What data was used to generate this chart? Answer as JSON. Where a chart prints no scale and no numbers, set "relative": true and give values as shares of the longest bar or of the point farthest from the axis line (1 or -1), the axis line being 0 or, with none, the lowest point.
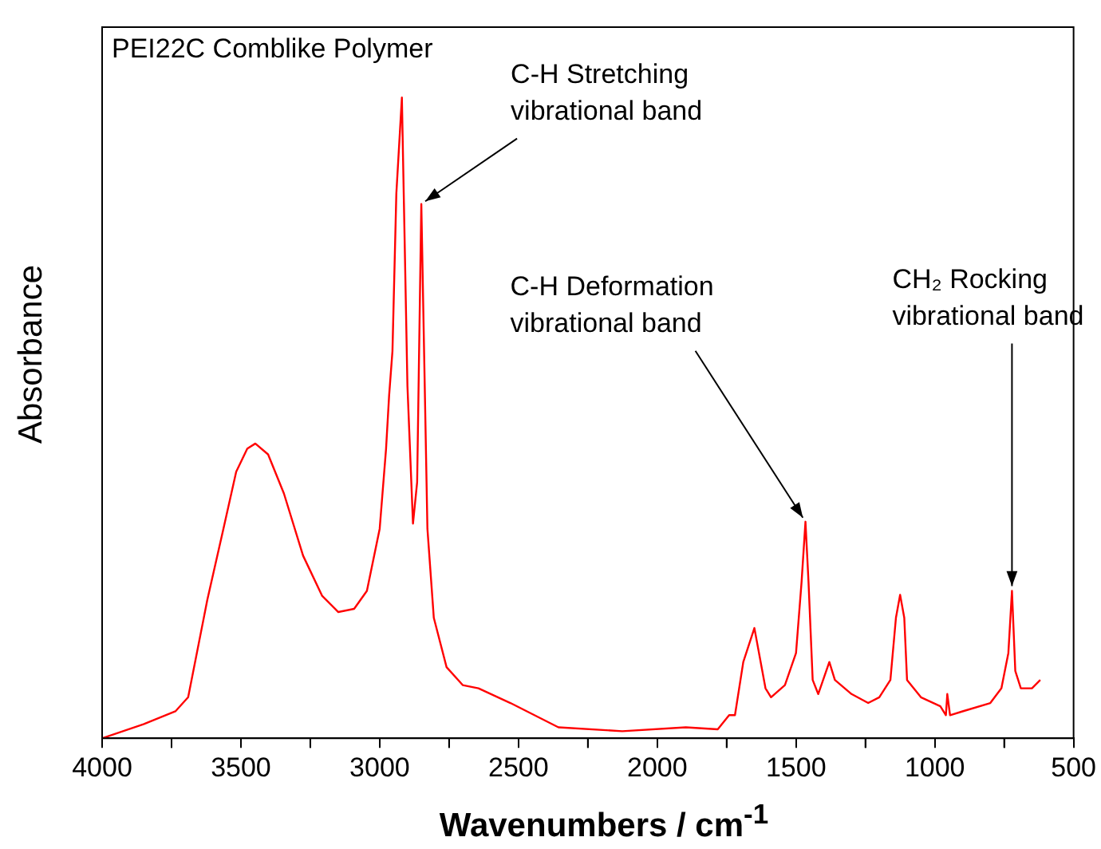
{
  "chart_data": {
    "type": "line",
    "relative": true,
    "xlabel": "Wavenumbers / cm$^{-1}$",
    "ylabel": "Absorbance",
    "color": "#ff0000",
    "marker": "none",
    "grid": false,
    "legend": false,
    "tick_labels": "x",
    "xlim": [
      4000,
      500
    ],
    "xticks": [
      4000,
      {
        "value": 3750,
        "label": null
      },
      3500,
      {
        "value": 3250,
        "label": null
      },
      3000,
      {
        "value": 2750,
        "label": null
      },
      2500,
      {
        "value": 2250,
        "label": null
      },
      2000,
      {
        "value": 1750,
        "label": null
      },
      1500,
      {
        "value": 1250,
        "label": null
      },
      1000,
      {
        "value": 750,
        "label": null
      },
      500
    ],
    "x": [
      4000,
      3851,
      3736,
      3690,
      3621,
      3563,
      3517,
      3477,
      3448,
      3402,
      3345,
      3276,
      3207,
      3149,
      3092,
      3046,
      3000,
      2977,
      2966,
      2954,
      2940,
      2920,
      2900,
      2880,
      2865,
      2850,
      2828,
      2805,
      2759,
      2701,
      2644,
      2529,
      2356,
      2126,
      1897,
      1782,
      1741,
      1720,
      1690,
      1650,
      1610,
      1590,
      1540,
      1500,
      1480,
      1466,
      1455,
      1440,
      1420,
      1380,
      1360,
      1300,
      1240,
      1200,
      1160,
      1140,
      1125,
      1110,
      1100,
      1050,
      980,
      960,
      955,
      945,
      900,
      800,
      760,
      735,
      722,
      710,
      690,
      650,
      620
    ],
    "values": [
      0,
      0.022,
      0.042,
      0.064,
      0.216,
      0.327,
      0.416,
      0.452,
      0.46,
      0.443,
      0.382,
      0.285,
      0.222,
      0.197,
      0.202,
      0.23,
      0.327,
      0.452,
      0.535,
      0.604,
      0.85,
      1,
      0.55,
      0.335,
      0.4,
      0.834,
      0.327,
      0.188,
      0.111,
      0.083,
      0.078,
      0.055,
      0.017,
      0.011,
      0.017,
      0.014,
      0.036,
      0.036,
      0.119,
      0.172,
      0.078,
      0.064,
      0.083,
      0.133,
      0.244,
      0.338,
      0.244,
      0.091,
      0.069,
      0.119,
      0.091,
      0.069,
      0.055,
      0.064,
      0.091,
      0.188,
      0.224,
      0.188,
      0.091,
      0.064,
      0.05,
      0.036,
      0.069,
      0.036,
      0.042,
      0.055,
      0.078,
      0.133,
      0.23,
      0.105,
      0.078,
      0.078,
      0.091
    ],
    "annotations": [
      "PEI22C Comblike Polymer",
      {
        "text": "C-H Stretching vibrational band",
        "x": 2850,
        "y": 0.834
      },
      {
        "text": "C-H Deformation vibrational band",
        "x": 1466,
        "y": 0.338
      },
      {
        "text": "CH₂ Rocking vibrational band",
        "x": 722,
        "y": 0.23
      }
    ]
  }
}
